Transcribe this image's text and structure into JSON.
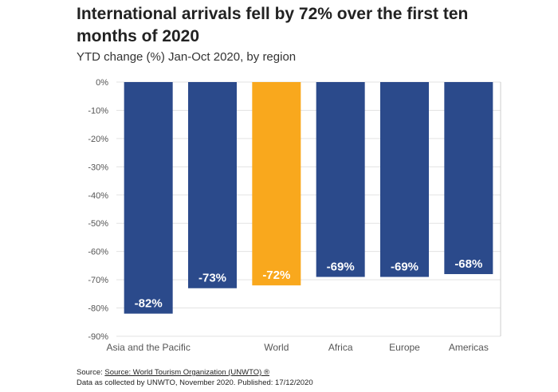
{
  "chart_data": {
    "type": "bar",
    "title": "International arrivals fell by 72% over the first ten months of 2020",
    "subtitle": "YTD change (%) Jan-Oct 2020, by region",
    "categories": [
      "Asia and the Pacific",
      "",
      "World",
      "Africa",
      "Europe",
      "Americas"
    ],
    "values": [
      -82,
      -73,
      -72,
      -69,
      -69,
      -68
    ],
    "value_labels": [
      "-82%",
      "-73%",
      "-72%",
      "-69%",
      "-69%",
      "-68%"
    ],
    "highlight_index": 2,
    "colors": {
      "default": "#2B4A8B",
      "highlight": "#F9A81D",
      "grid": "#e3e3e3",
      "label": "#ffffff"
    },
    "yticks": [
      0,
      -10,
      -20,
      -30,
      -40,
      -50,
      -60,
      -70,
      -80,
      -90
    ],
    "ytick_labels": [
      "0%",
      "-10%",
      "-20%",
      "-30%",
      "-40%",
      "-50%",
      "-60%",
      "-70%",
      "-80%",
      "-90%"
    ],
    "ylim": [
      -90,
      0
    ],
    "xlabel": "",
    "ylabel": "",
    "grid": true,
    "legend": false
  },
  "footer": {
    "source_prefix": "Source: ",
    "source_link": "Source: World Tourism Organization (UNWTO) ®",
    "note": "Data as collected by UNWTO, November 2020. Published: 17/12/2020"
  }
}
